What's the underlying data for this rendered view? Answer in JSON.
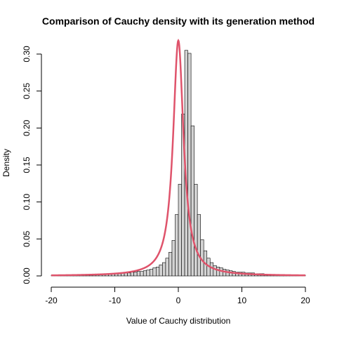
{
  "chart_data": {
    "type": "bar",
    "title": "Comparison of Cauchy density with its generation method",
    "xlabel": "Value of Cauchy distribution",
    "ylabel": "Density",
    "xlim": [
      -20,
      20
    ],
    "ylim": [
      0,
      0.32
    ],
    "x_ticks": [
      -20,
      -10,
      0,
      10,
      20
    ],
    "x_tick_labels": [
      "-20",
      "-10",
      "0",
      "10",
      "20"
    ],
    "y_ticks": [
      0,
      0.05,
      0.1,
      0.15,
      0.2,
      0.25,
      0.3
    ],
    "y_tick_labels": [
      "0.00",
      "0.05",
      "0.10",
      "0.15",
      "0.20",
      "0.25",
      "0.30"
    ],
    "bin_width": 0.5,
    "bin_start": -20,
    "histogram_densities": [
      0.001,
      0.001,
      0.001,
      0.001,
      0.001,
      0.001,
      0.001,
      0.001,
      0.001,
      0.001,
      0.002,
      0.002,
      0.002,
      0.002,
      0.002,
      0.002,
      0.002,
      0.002,
      0.003,
      0.003,
      0.003,
      0.003,
      0.004,
      0.004,
      0.004,
      0.005,
      0.005,
      0.006,
      0.006,
      0.007,
      0.008,
      0.009,
      0.011,
      0.012,
      0.015,
      0.018,
      0.024,
      0.032,
      0.048,
      0.083,
      0.124,
      0.219,
      0.305,
      0.301,
      0.203,
      0.124,
      0.083,
      0.049,
      0.034,
      0.024,
      0.018,
      0.014,
      0.012,
      0.011,
      0.009,
      0.008,
      0.007,
      0.006,
      0.005,
      0.005,
      0.005,
      0.004,
      0.004,
      0.004,
      0.003,
      0.003,
      0.003,
      0.002,
      0.002,
      0.002,
      0.002,
      0.002,
      0.001,
      0.001,
      0.001,
      0.001,
      0.001,
      0.001,
      0.001,
      0.001
    ],
    "series": [
      {
        "type": "histogram",
        "bar_color": "#d3d3d3",
        "edge_color": "#000000"
      },
      {
        "type": "line",
        "function": "cauchy_density",
        "location": 0,
        "scale": 1,
        "color": "#df536b"
      }
    ],
    "grid": false,
    "legend": "none"
  }
}
